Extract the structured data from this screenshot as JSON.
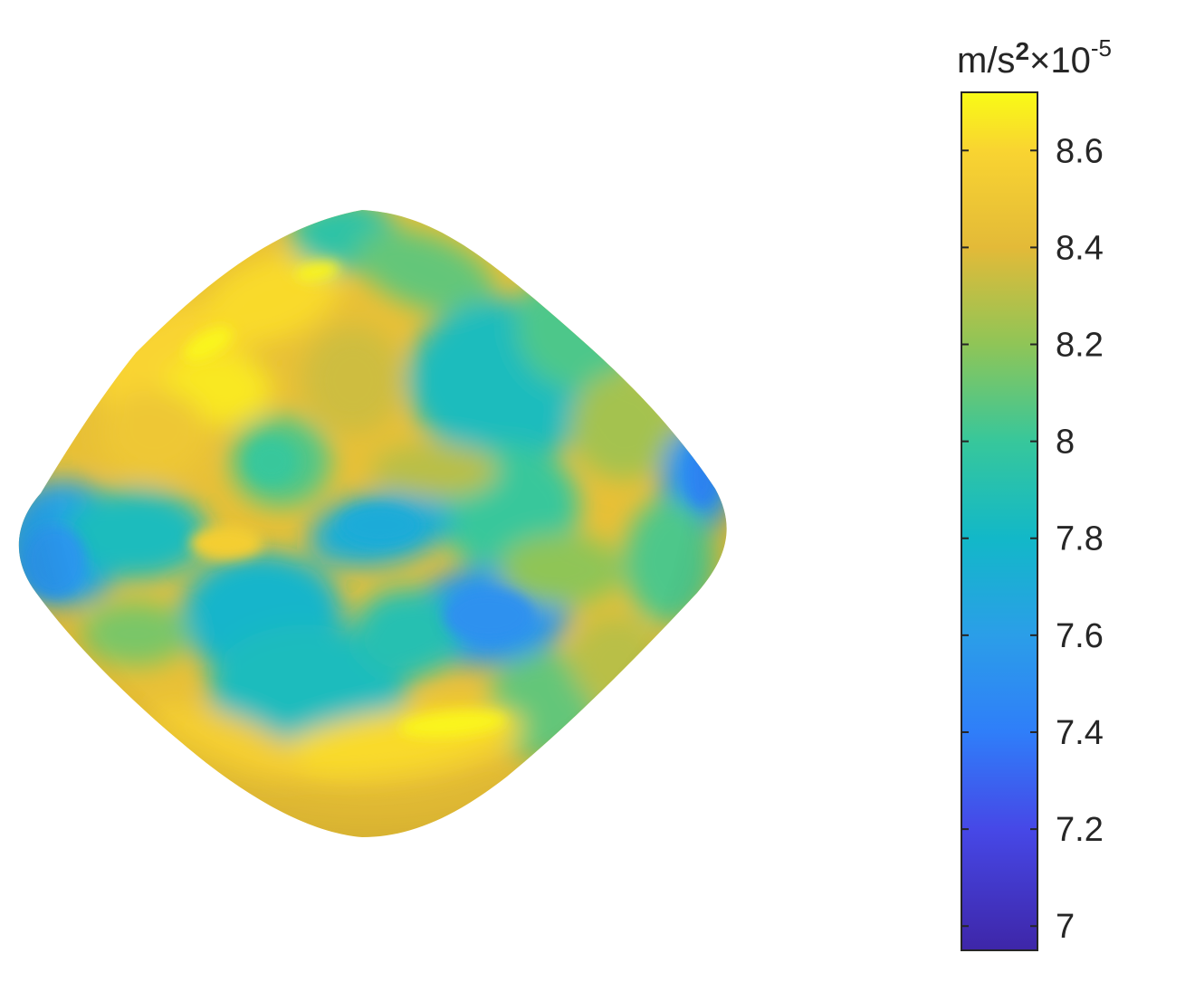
{
  "chart_data": {
    "type": "heatmap",
    "title": "",
    "xlabel": "",
    "ylabel": "",
    "colormap": "parula",
    "colorbar": {
      "unit_base": "m/s",
      "unit_exponent": "2",
      "unit_multiplier": "×10",
      "scale_exponent": "-5",
      "range": [
        6.95,
        8.72
      ],
      "ticks": [
        7,
        7.2,
        7.4,
        7.6,
        7.8,
        8,
        8.2,
        8.4,
        8.6
      ],
      "tick_labels": [
        "7",
        "7.2",
        "7.4",
        "7.6",
        "7.8",
        "8",
        "8.2",
        "8.4",
        "8.6"
      ],
      "colors": {
        "6.95": "#3e26a8",
        "7.2": "#4648e7",
        "7.4": "#2f7ef9",
        "7.6": "#2b9ee8",
        "7.8": "#12b8c8",
        "8.0": "#37c79b",
        "8.2": "#8fc557",
        "8.4": "#e3ba38",
        "8.6": "#f9d431",
        "8.72": "#f9fb15"
      }
    },
    "surface": {
      "description_value_range": [
        7.55,
        8.72
      ],
      "background_level": 8.45
    }
  }
}
